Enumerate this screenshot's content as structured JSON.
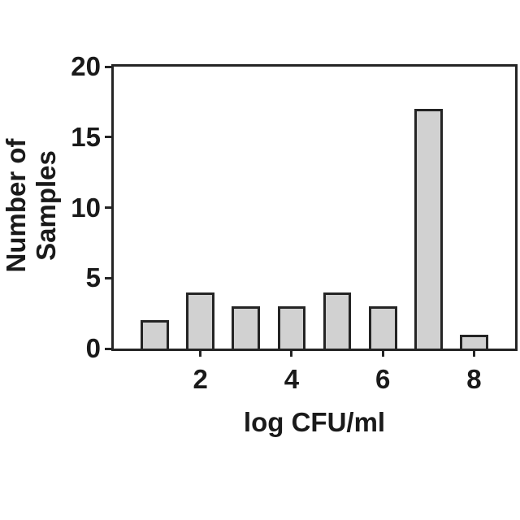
{
  "chart_data": {
    "type": "bar",
    "title": "",
    "xlabel": "log CFU/ml",
    "ylabel_lines": [
      "Number of",
      "Samples"
    ],
    "x": [
      1,
      2,
      3,
      4,
      5,
      6,
      7,
      8
    ],
    "values": [
      2,
      4,
      3,
      3,
      4,
      3,
      17,
      1
    ],
    "x_tick_values": [
      2,
      4,
      6,
      8
    ],
    "x_tick_labels": [
      "2",
      "4",
      "6",
      "8"
    ],
    "y_tick_values": [
      0,
      5,
      10,
      15,
      20
    ],
    "y_tick_labels": [
      "0",
      "5",
      "10",
      "15",
      "20"
    ],
    "xlim": [
      0.1,
      8.9
    ],
    "ylim": [
      0,
      20
    ],
    "bar_width_units": 0.62,
    "grid": false,
    "legend": "none",
    "colors": {
      "background": "#ffffff",
      "bar_fill": "#d1d1d1",
      "bar_stroke": "#242424",
      "axis": "#242424",
      "text": "#1a1a1a"
    }
  }
}
